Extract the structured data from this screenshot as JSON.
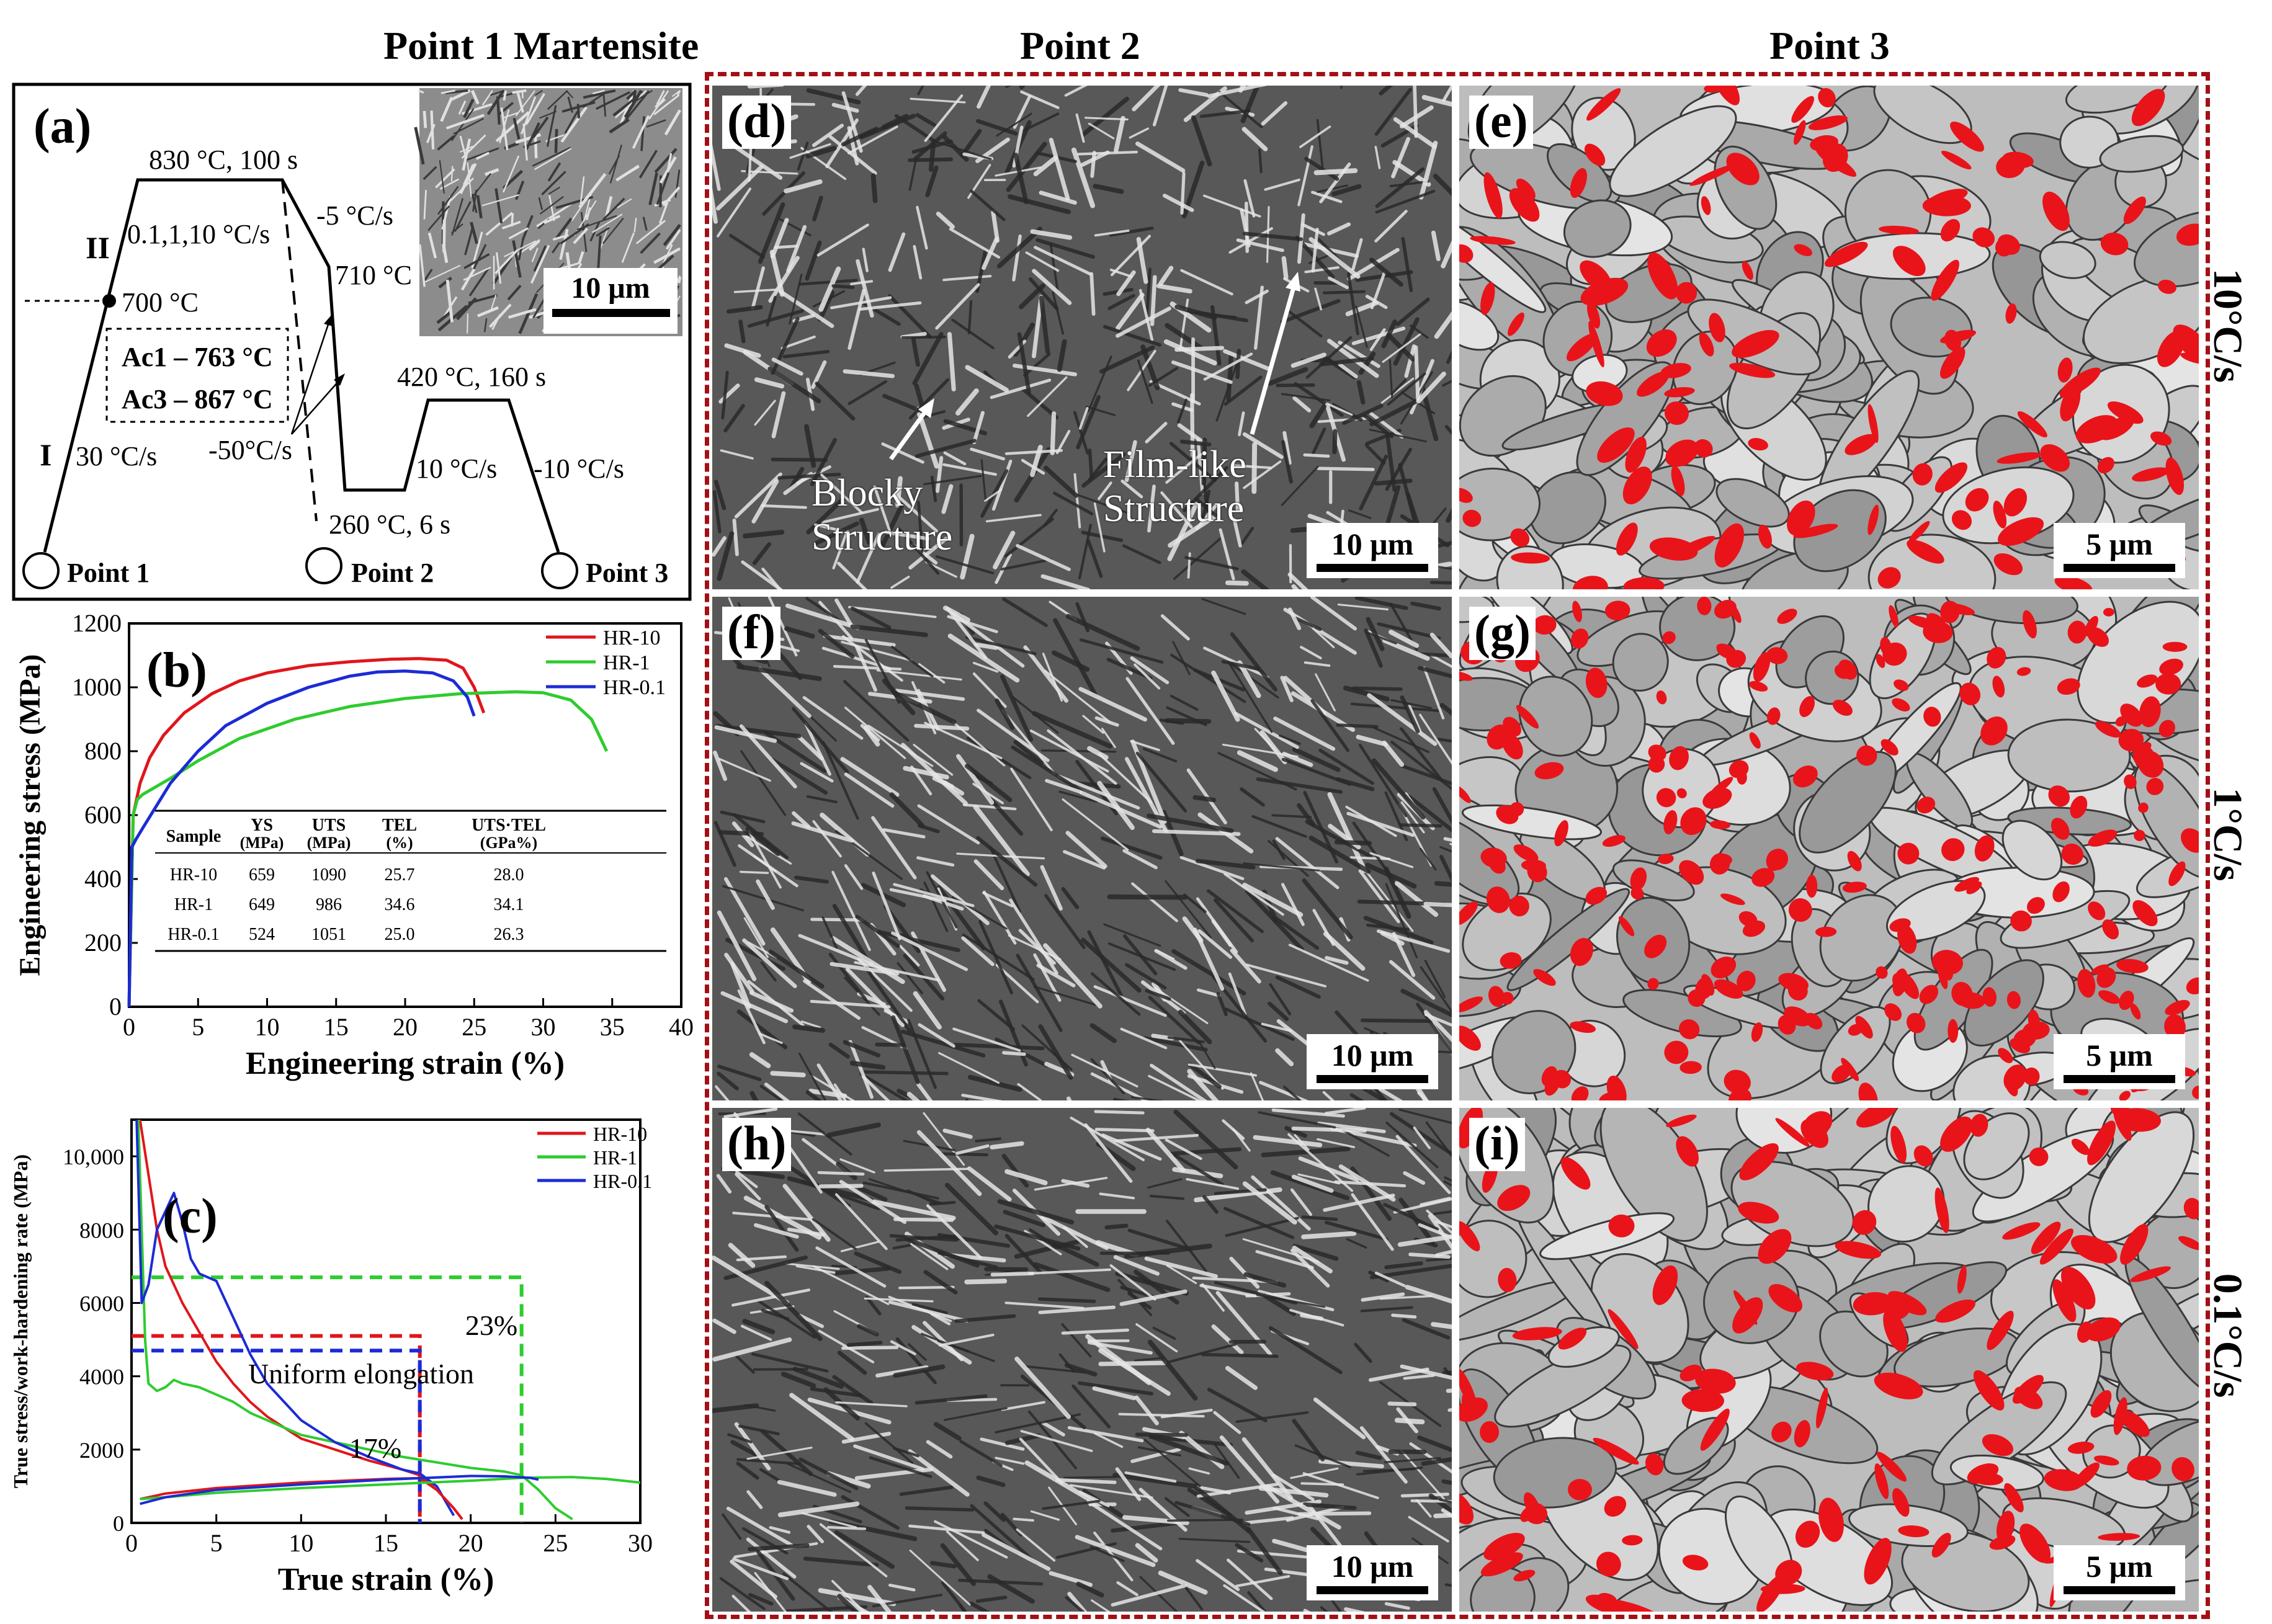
{
  "headers": {
    "point1": "Point 1 Martensite",
    "point2": "Point 2",
    "point3": "Point 3"
  },
  "rates": [
    "10°C/s",
    "1°C/s",
    "0.1°C/s"
  ],
  "panels": [
    {
      "label": "(d)",
      "scale": "10 μm",
      "kind": "sem"
    },
    {
      "label": "(e)",
      "scale": "5 μm",
      "kind": "ebsd"
    },
    {
      "label": "(f)",
      "scale": "10 μm",
      "kind": "sem"
    },
    {
      "label": "(g)",
      "scale": "5 μm",
      "kind": "ebsd"
    },
    {
      "label": "(h)",
      "scale": "10 μm",
      "kind": "sem"
    },
    {
      "label": "(i)",
      "scale": "5 μm",
      "kind": "ebsd"
    }
  ],
  "annotations": {
    "blocky": "Blocky\nStructure",
    "film": "Film-like\nStructure"
  },
  "schedule": {
    "label": "(a)",
    "inset_scale": "10 μm",
    "stages": {
      "s1": "I",
      "s2": "II"
    },
    "texts": {
      "hold1": "830 °C, 100 s",
      "heat2": "0.1,1,10 °C/s",
      "cool1": "-5 °C/s",
      "t710": "710 °C",
      "t700": "700 °C",
      "ac1": "Ac1 – 763 °C",
      "ac3": "Ac3 – 867 °C",
      "heat1": "30 °C/s",
      "quench": "-50°C/s",
      "q260": "260 °C, 6 s",
      "hold2": "420 °C, 160 s",
      "reheat": "10 °C/s",
      "cool2": "-10 °C/s"
    },
    "points": [
      "Point 1",
      "Point 2",
      "Point 3"
    ]
  },
  "chart_data": [
    {
      "label": "(b)",
      "type": "line",
      "xlabel": "Engineering strain (%)",
      "ylabel": "Engineering stress (MPa)",
      "xlim": [
        0,
        40
      ],
      "ylim": [
        0,
        1200
      ],
      "xticks": [
        0,
        5,
        10,
        15,
        20,
        25,
        30,
        35,
        40
      ],
      "yticks": [
        0,
        200,
        400,
        600,
        800,
        1000,
        1200
      ],
      "legend_position": "top-right",
      "series": [
        {
          "name": "HR-10",
          "color": "#e0161b",
          "x": [
            0,
            0.3,
            0.8,
            1.5,
            2.5,
            4,
            6,
            8,
            10,
            13,
            16,
            19,
            21,
            23,
            24.2,
            25,
            25.7
          ],
          "y": [
            0,
            600,
            700,
            780,
            850,
            920,
            980,
            1020,
            1045,
            1068,
            1080,
            1088,
            1090,
            1085,
            1060,
            1000,
            920
          ]
        },
        {
          "name": "HR-1",
          "color": "#2ecc2e",
          "x": [
            0,
            0.3,
            0.6,
            1,
            2,
            3,
            5,
            8,
            12,
            16,
            20,
            24,
            28,
            30,
            32,
            33.5,
            34.6
          ],
          "y": [
            0,
            600,
            649,
            665,
            690,
            715,
            770,
            840,
            900,
            940,
            965,
            980,
            986,
            983,
            960,
            900,
            800
          ]
        },
        {
          "name": "HR-0.1",
          "color": "#1c2bd6",
          "x": [
            0,
            0.2,
            0.5,
            1,
            2,
            3,
            5,
            7,
            10,
            13,
            16,
            18,
            20,
            22,
            23.5,
            24.5,
            25
          ],
          "y": [
            0,
            500,
            524,
            560,
            630,
            700,
            800,
            880,
            950,
            1000,
            1035,
            1048,
            1051,
            1045,
            1020,
            970,
            910
          ]
        }
      ],
      "table": {
        "headers": [
          [
            "Sample",
            ""
          ],
          [
            "YS",
            "(MPa)"
          ],
          [
            "UTS",
            "(MPa)"
          ],
          [
            "TEL",
            "(%)"
          ],
          [
            "UTS·TEL",
            "(GPa%)"
          ]
        ],
        "rows": [
          [
            "HR-10",
            "659",
            "1090",
            "25.7",
            "28.0"
          ],
          [
            "HR-1",
            "649",
            "986",
            "34.6",
            "34.1"
          ],
          [
            "HR-0.1",
            "524",
            "1051",
            "25.0",
            "26.3"
          ]
        ]
      }
    },
    {
      "label": "(c)",
      "type": "line",
      "xlabel": "True strain (%)",
      "ylabel": "True stress/work-hardening rate (MPa)",
      "xlim": [
        0,
        30
      ],
      "ylim": [
        0,
        11000
      ],
      "xticks": [
        0,
        5,
        10,
        15,
        20,
        25,
        30
      ],
      "ytick_labels": [
        "0",
        "2000",
        "4000",
        "6000",
        "8000",
        "10,000"
      ],
      "yticks": [
        0,
        2000,
        4000,
        6000,
        8000,
        10000
      ],
      "legend_position": "top-right",
      "series": [
        {
          "name": "HR-10",
          "color": "#e0161b",
          "kind": "hardening",
          "x": [
            0.5,
            1,
            1.5,
            2,
            2.5,
            3,
            4,
            5,
            6,
            7,
            8,
            9,
            10,
            12,
            14,
            16,
            17,
            18,
            19,
            19.5
          ],
          "y": [
            11000,
            9500,
            8000,
            7000,
            6500,
            6000,
            5200,
            4400,
            3800,
            3300,
            2900,
            2600,
            2300,
            2000,
            1700,
            1450,
            1300,
            900,
            400,
            100
          ]
        },
        {
          "name": "HR-1",
          "color": "#2ecc2e",
          "kind": "hardening",
          "x": [
            0.4,
            0.6,
            0.8,
            1,
            1.5,
            2,
            2.5,
            3,
            4,
            5,
            6,
            7,
            8,
            9,
            10,
            12,
            14,
            16,
            18,
            20,
            22,
            23,
            24,
            25,
            26
          ],
          "y": [
            11000,
            8000,
            5000,
            3800,
            3600,
            3700,
            3900,
            3800,
            3700,
            3500,
            3300,
            3000,
            2800,
            2600,
            2400,
            2200,
            2000,
            1800,
            1650,
            1500,
            1400,
            1300,
            900,
            400,
            100
          ]
        },
        {
          "name": "HR-0.1",
          "color": "#1c2bd6",
          "kind": "hardening",
          "x": [
            0.3,
            0.6,
            1,
            1.5,
            2,
            2.5,
            3,
            3.5,
            4,
            5,
            6,
            7,
            8,
            9,
            10,
            12,
            14,
            16,
            17,
            18,
            19
          ],
          "y": [
            11000,
            6000,
            6500,
            8000,
            8500,
            9000,
            8200,
            7200,
            6800,
            6600,
            5600,
            4600,
            3800,
            3300,
            2800,
            2200,
            1800,
            1450,
            1350,
            1000,
            200
          ]
        },
        {
          "name": "HR-10 true stress",
          "color": "#e0161b",
          "kind": "stress",
          "x": [
            0.5,
            2,
            5,
            10,
            15,
            17,
            18,
            19,
            19.5
          ],
          "y": [
            650,
            800,
            950,
            1100,
            1200,
            1220,
            900,
            400,
            100
          ]
        },
        {
          "name": "HR-1 true stress",
          "color": "#2ecc2e",
          "kind": "stress",
          "x": [
            0.5,
            2,
            5,
            10,
            15,
            20,
            23,
            26,
            28,
            30
          ],
          "y": [
            650,
            700,
            820,
            950,
            1050,
            1150,
            1230,
            1250,
            1200,
            1100
          ]
        },
        {
          "name": "HR-0.1 true stress",
          "color": "#1c2bd6",
          "kind": "stress",
          "x": [
            0.5,
            2,
            5,
            10,
            15,
            20,
            22,
            23.5,
            24
          ],
          "y": [
            520,
            700,
            900,
            1050,
            1180,
            1280,
            1270,
            1230,
            1180
          ]
        }
      ],
      "legend_entries": [
        "HR-10",
        "HR-1",
        "HR-0.1"
      ],
      "annotations": {
        "uniform": "Uniform elongation",
        "p23": "23%",
        "p17": "17%",
        "markers": [
          {
            "color": "#e0161b",
            "y": 5100,
            "x_end": 17
          },
          {
            "color": "#1c2bd6",
            "y": 4700,
            "x_end": 17
          },
          {
            "color": "#2ecc2e",
            "y": 6700,
            "x_end": 23
          }
        ]
      }
    }
  ]
}
